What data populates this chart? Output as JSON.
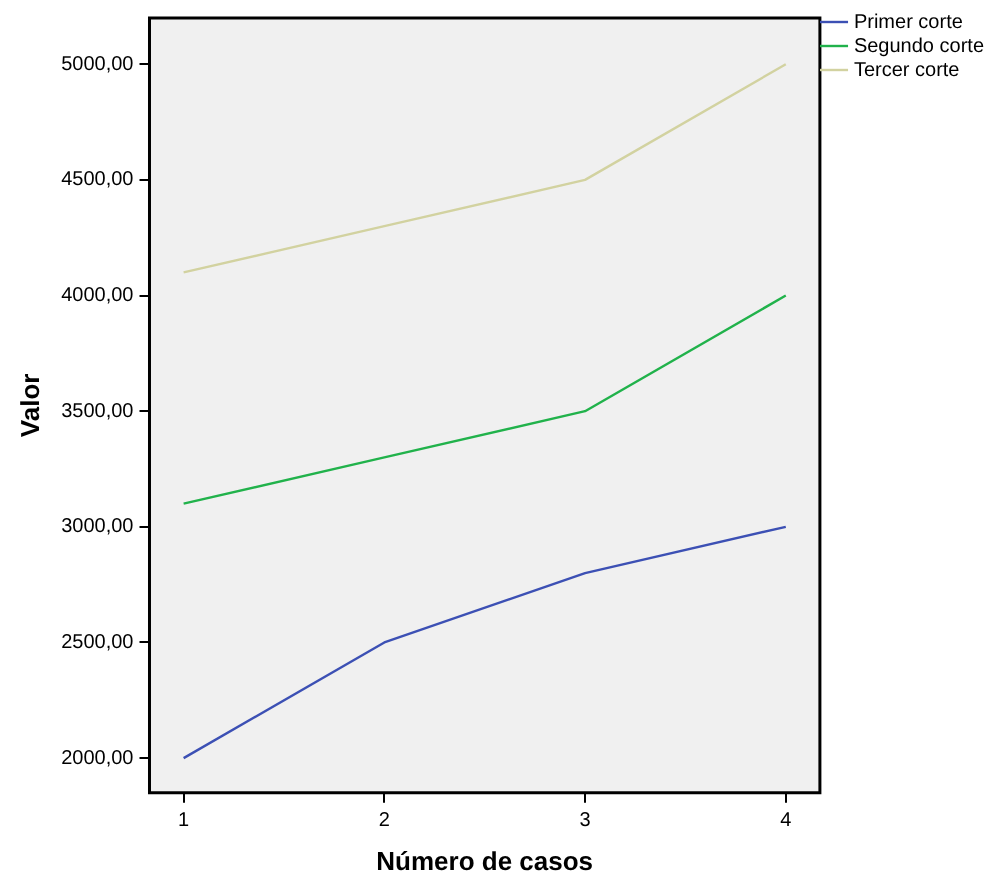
{
  "chart_data": {
    "type": "line",
    "xlabel": "Número de casos",
    "ylabel": "Valor",
    "x": [
      1,
      2,
      3,
      4
    ],
    "series": [
      {
        "name": "Primer corte",
        "color": "#3c50b4",
        "values": [
          2000,
          2500,
          2800,
          3000
        ]
      },
      {
        "name": "Segundo corte",
        "color": "#21b24b",
        "values": [
          3100,
          3300,
          3500,
          4000
        ]
      },
      {
        "name": "Tercer corte",
        "color": "#d2d2a0",
        "values": [
          4100,
          4300,
          4500,
          5000
        ]
      }
    ],
    "xlim": [
      0.83,
      4.17
    ],
    "xticks": [
      1,
      2,
      3,
      4
    ],
    "ylim": [
      1850,
      5200
    ],
    "yticks": [
      {
        "value": 2000,
        "label": "2000,00"
      },
      {
        "value": 2500,
        "label": "2500,00"
      },
      {
        "value": 3000,
        "label": "3000,00"
      },
      {
        "value": 3500,
        "label": "3500,00"
      },
      {
        "value": 4000,
        "label": "4000,00"
      },
      {
        "value": 4500,
        "label": "4500,00"
      },
      {
        "value": 5000,
        "label": "5000,00"
      }
    ],
    "grid": false,
    "legend": "top right",
    "marker": "none",
    "line_style": "solid"
  }
}
